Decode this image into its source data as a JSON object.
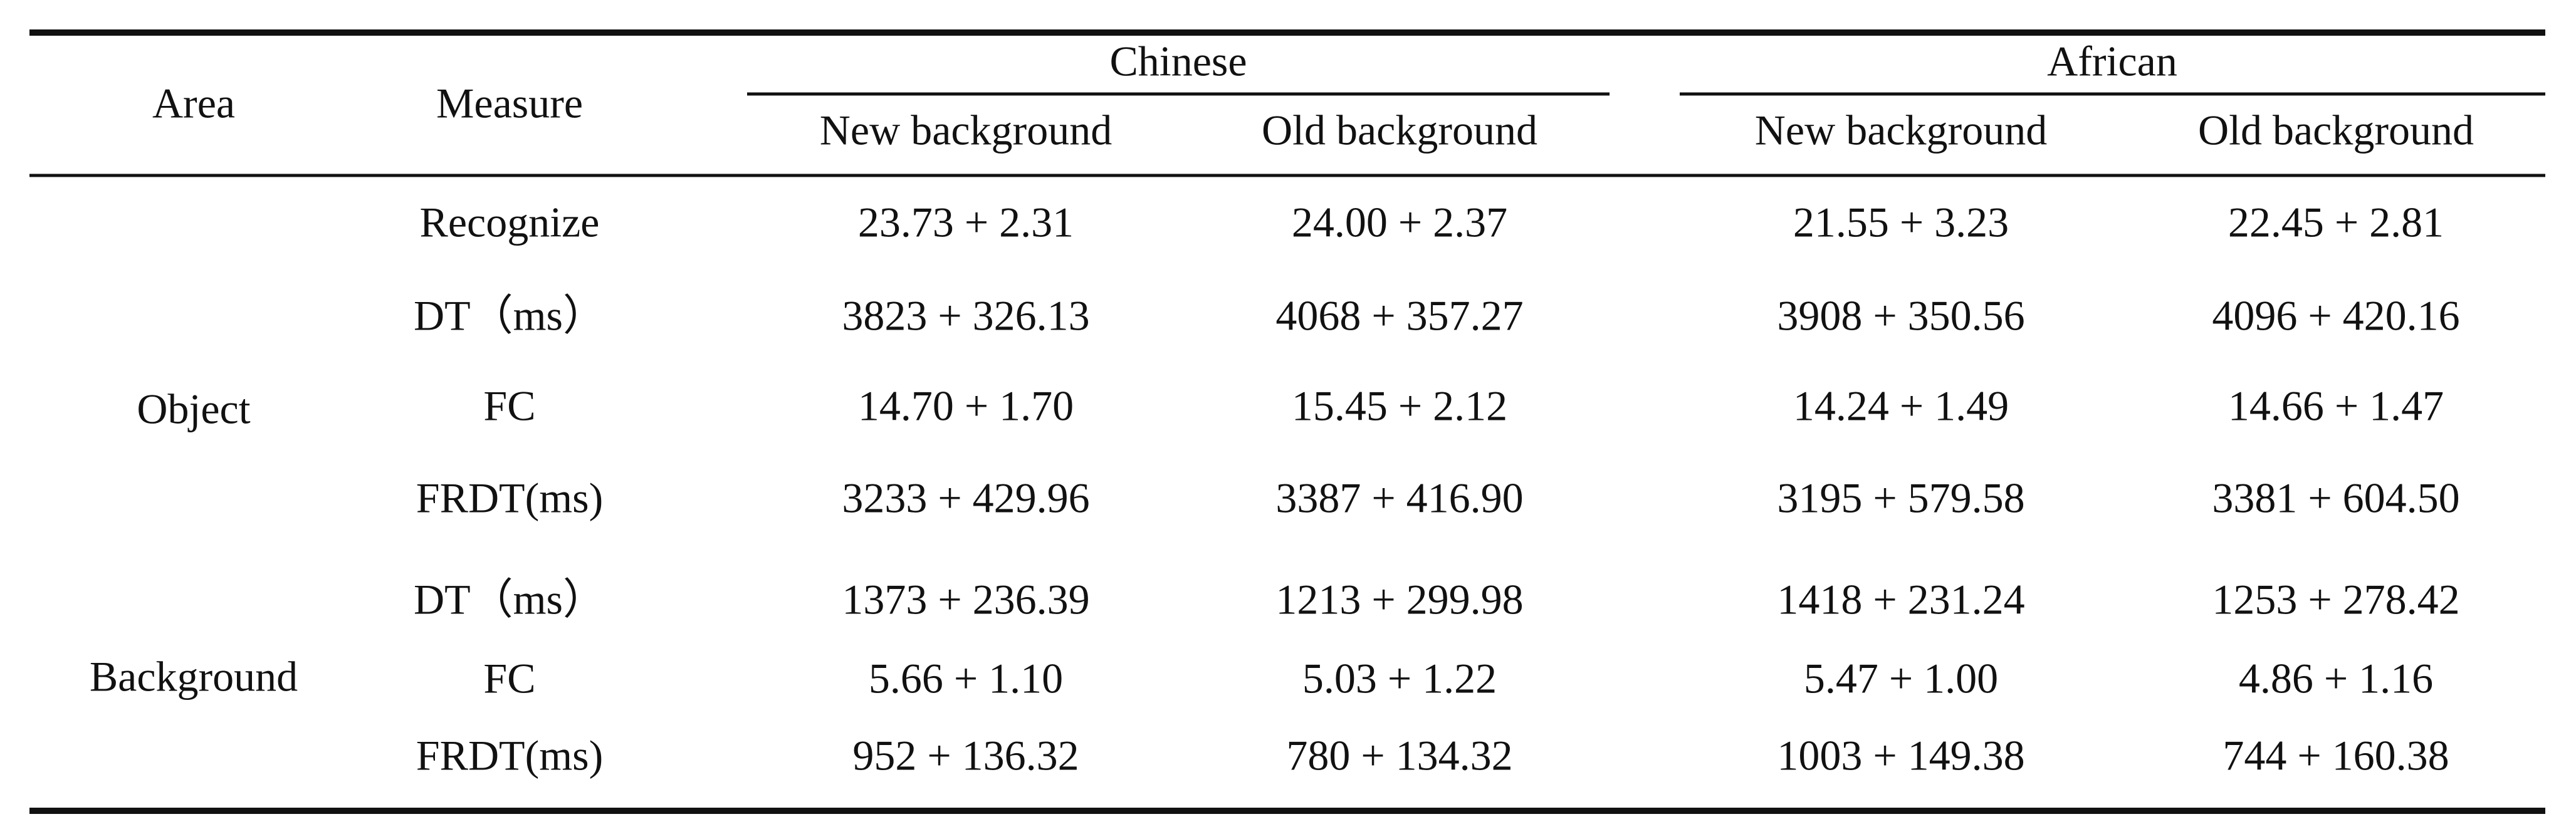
{
  "header": {
    "area": "Area",
    "measure": "Measure",
    "groups": [
      {
        "name": "Chinese",
        "columns": [
          "New background",
          "Old background"
        ]
      },
      {
        "name": "African",
        "columns": [
          "New background",
          "Old background"
        ]
      }
    ]
  },
  "sections": [
    {
      "area": "Object",
      "rows": [
        {
          "measure": "Recognize",
          "values": [
            "23.73 + 2.31",
            "24.00 + 2.37",
            "21.55 + 3.23",
            "22.45 + 2.81"
          ]
        },
        {
          "measure": "DT（ms）",
          "values": [
            "3823 + 326.13",
            "4068 + 357.27",
            "3908 + 350.56",
            "4096 + 420.16"
          ]
        },
        {
          "measure": "FC",
          "values": [
            "14.70 + 1.70",
            "15.45 + 2.12",
            "14.24 + 1.49",
            "14.66 + 1.47"
          ]
        },
        {
          "measure": "FRDT(ms)",
          "values": [
            "3233 + 429.96",
            "3387 + 416.90",
            "3195 + 579.58",
            "3381 + 604.50"
          ]
        }
      ]
    },
    {
      "area": "Background",
      "rows": [
        {
          "measure": "DT（ms）",
          "values": [
            "1373 + 236.39",
            "1213 + 299.98",
            "1418 + 231.24",
            "1253 + 278.42"
          ]
        },
        {
          "measure": "FC",
          "values": [
            "5.66 + 1.10",
            "5.03 + 1.22",
            "5.47 + 1.00",
            "4.86 + 1.16"
          ]
        },
        {
          "measure": "FRDT(ms)",
          "values": [
            "952 + 136.32",
            "780 + 134.32",
            "1003 + 149.38",
            "744 + 160.38"
          ]
        }
      ]
    }
  ]
}
